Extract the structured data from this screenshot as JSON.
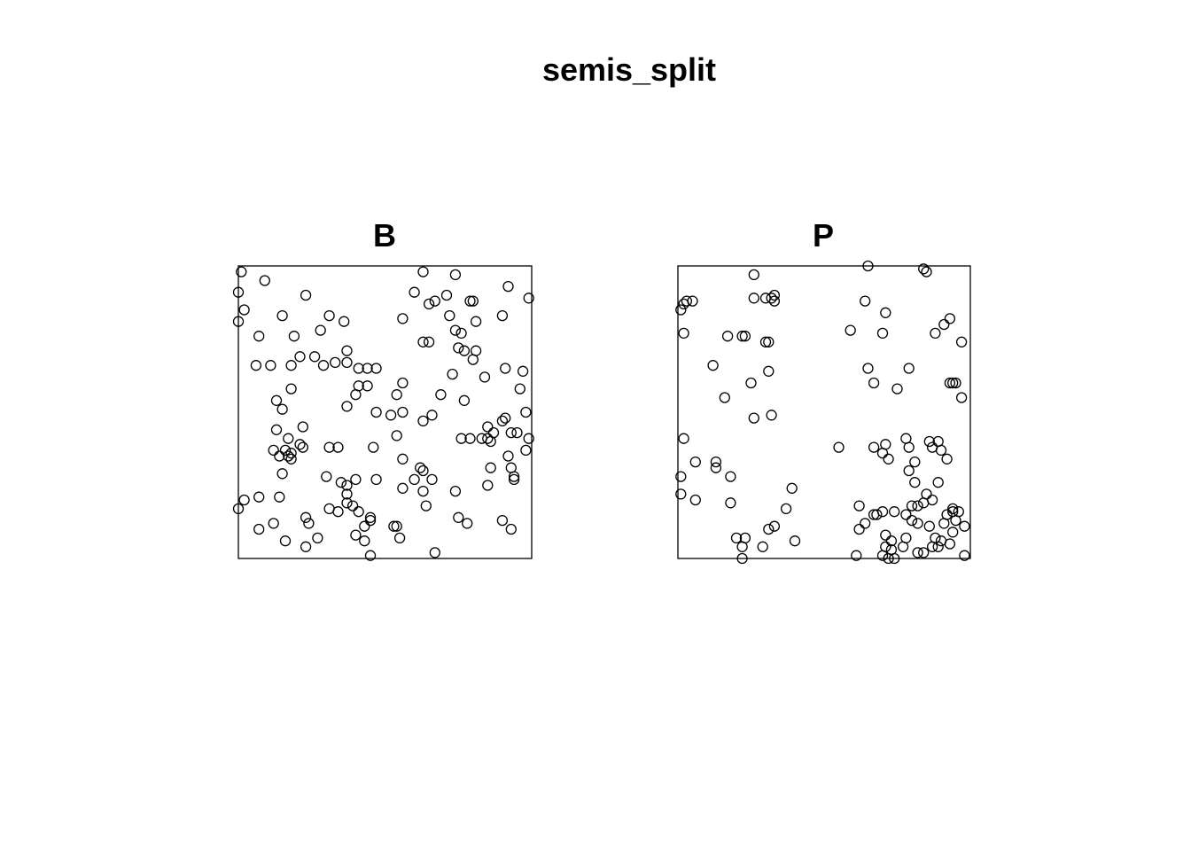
{
  "title": "semis_split",
  "chart_data": [
    {
      "type": "scatter",
      "title": "B",
      "xlim": [
        0,
        1
      ],
      "ylim": [
        0,
        1
      ],
      "frame": true,
      "axes": false,
      "marker": "open-circle",
      "color": "#000000",
      "points": [
        [
          0.01,
          0.98
        ],
        [
          0.09,
          0.95
        ],
        [
          0.0,
          0.91
        ],
        [
          0.02,
          0.85
        ],
        [
          0.0,
          0.81
        ],
        [
          0.23,
          0.9
        ],
        [
          0.15,
          0.83
        ],
        [
          0.31,
          0.83
        ],
        [
          0.36,
          0.81
        ],
        [
          0.28,
          0.78
        ],
        [
          0.07,
          0.76
        ],
        [
          0.19,
          0.76
        ],
        [
          0.21,
          0.69
        ],
        [
          0.26,
          0.69
        ],
        [
          0.37,
          0.71
        ],
        [
          0.06,
          0.66
        ],
        [
          0.11,
          0.66
        ],
        [
          0.18,
          0.66
        ],
        [
          0.29,
          0.66
        ],
        [
          0.33,
          0.67
        ],
        [
          0.37,
          0.67
        ],
        [
          0.41,
          0.65
        ],
        [
          0.44,
          0.65
        ],
        [
          0.47,
          0.65
        ],
        [
          0.63,
          0.98
        ],
        [
          0.74,
          0.97
        ],
        [
          0.92,
          0.93
        ],
        [
          0.99,
          0.89
        ],
        [
          0.6,
          0.91
        ],
        [
          0.71,
          0.9
        ],
        [
          0.65,
          0.87
        ],
        [
          0.67,
          0.88
        ],
        [
          0.79,
          0.88
        ],
        [
          0.8,
          0.88
        ],
        [
          0.72,
          0.83
        ],
        [
          0.56,
          0.82
        ],
        [
          0.9,
          0.83
        ],
        [
          0.74,
          0.78
        ],
        [
          0.76,
          0.77
        ],
        [
          0.63,
          0.74
        ],
        [
          0.65,
          0.74
        ],
        [
          0.81,
          0.81
        ],
        [
          0.75,
          0.72
        ],
        [
          0.77,
          0.71
        ],
        [
          0.81,
          0.71
        ],
        [
          0.8,
          0.68
        ],
        [
          0.91,
          0.65
        ],
        [
          0.97,
          0.64
        ],
        [
          0.73,
          0.63
        ],
        [
          0.84,
          0.62
        ],
        [
          0.96,
          0.58
        ],
        [
          0.18,
          0.58
        ],
        [
          0.13,
          0.54
        ],
        [
          0.41,
          0.59
        ],
        [
          0.4,
          0.56
        ],
        [
          0.44,
          0.59
        ],
        [
          0.56,
          0.6
        ],
        [
          0.54,
          0.56
        ],
        [
          0.69,
          0.56
        ],
        [
          0.15,
          0.51
        ],
        [
          0.37,
          0.52
        ],
        [
          0.56,
          0.5
        ],
        [
          0.66,
          0.49
        ],
        [
          0.77,
          0.54
        ],
        [
          0.85,
          0.45
        ],
        [
          0.91,
          0.48
        ],
        [
          0.98,
          0.5
        ],
        [
          0.13,
          0.44
        ],
        [
          0.22,
          0.45
        ],
        [
          0.47,
          0.5
        ],
        [
          0.52,
          0.49
        ],
        [
          0.63,
          0.47
        ],
        [
          0.17,
          0.41
        ],
        [
          0.21,
          0.39
        ],
        [
          0.16,
          0.37
        ],
        [
          0.83,
          0.41
        ],
        [
          0.87,
          0.43
        ],
        [
          0.9,
          0.47
        ],
        [
          0.95,
          0.43
        ],
        [
          0.99,
          0.41
        ],
        [
          0.12,
          0.37
        ],
        [
          0.14,
          0.35
        ],
        [
          0.18,
          0.36
        ],
        [
          0.22,
          0.38
        ],
        [
          0.31,
          0.38
        ],
        [
          0.34,
          0.38
        ],
        [
          0.46,
          0.38
        ],
        [
          0.54,
          0.42
        ],
        [
          0.76,
          0.41
        ],
        [
          0.79,
          0.41
        ],
        [
          0.85,
          0.41
        ],
        [
          0.86,
          0.4
        ],
        [
          0.93,
          0.43
        ],
        [
          0.98,
          0.37
        ],
        [
          0.92,
          0.35
        ],
        [
          0.17,
          0.35
        ],
        [
          0.18,
          0.34
        ],
        [
          0.56,
          0.34
        ],
        [
          0.62,
          0.31
        ],
        [
          0.15,
          0.29
        ],
        [
          0.3,
          0.28
        ],
        [
          0.35,
          0.26
        ],
        [
          0.4,
          0.27
        ],
        [
          0.47,
          0.27
        ],
        [
          0.6,
          0.27
        ],
        [
          0.63,
          0.3
        ],
        [
          0.66,
          0.27
        ],
        [
          0.86,
          0.31
        ],
        [
          0.94,
          0.27
        ],
        [
          0.93,
          0.31
        ],
        [
          0.37,
          0.22
        ],
        [
          0.37,
          0.25
        ],
        [
          0.56,
          0.24
        ],
        [
          0.63,
          0.23
        ],
        [
          0.74,
          0.23
        ],
        [
          0.85,
          0.25
        ],
        [
          0.94,
          0.28
        ],
        [
          0.02,
          0.2
        ],
        [
          0.07,
          0.21
        ],
        [
          0.14,
          0.21
        ],
        [
          0.0,
          0.17
        ],
        [
          0.31,
          0.17
        ],
        [
          0.34,
          0.16
        ],
        [
          0.37,
          0.19
        ],
        [
          0.39,
          0.18
        ],
        [
          0.41,
          0.16
        ],
        [
          0.64,
          0.18
        ],
        [
          0.23,
          0.14
        ],
        [
          0.24,
          0.12
        ],
        [
          0.12,
          0.12
        ],
        [
          0.45,
          0.14
        ],
        [
          0.45,
          0.13
        ],
        [
          0.43,
          0.11
        ],
        [
          0.53,
          0.11
        ],
        [
          0.54,
          0.11
        ],
        [
          0.07,
          0.1
        ],
        [
          0.16,
          0.06
        ],
        [
          0.27,
          0.07
        ],
        [
          0.4,
          0.08
        ],
        [
          0.43,
          0.06
        ],
        [
          0.55,
          0.07
        ],
        [
          0.23,
          0.04
        ],
        [
          0.45,
          0.01
        ],
        [
          0.67,
          0.02
        ],
        [
          0.75,
          0.14
        ],
        [
          0.78,
          0.12
        ],
        [
          0.9,
          0.13
        ],
        [
          0.93,
          0.1
        ]
      ]
    },
    {
      "type": "scatter",
      "title": "P",
      "xlim": [
        0,
        1
      ],
      "ylim": [
        0,
        1
      ],
      "frame": true,
      "axes": false,
      "marker": "open-circle",
      "color": "#000000",
      "points": [
        [
          0.26,
          0.97
        ],
        [
          0.65,
          1.0
        ],
        [
          0.84,
          0.99
        ],
        [
          0.85,
          0.98
        ],
        [
          0.26,
          0.89
        ],
        [
          0.3,
          0.89
        ],
        [
          0.32,
          0.89
        ],
        [
          0.33,
          0.9
        ],
        [
          0.33,
          0.88
        ],
        [
          0.64,
          0.88
        ],
        [
          0.71,
          0.84
        ],
        [
          0.93,
          0.82
        ],
        [
          0.91,
          0.8
        ],
        [
          0.88,
          0.77
        ],
        [
          0.97,
          0.74
        ],
        [
          0.02,
          0.87
        ],
        [
          0.03,
          0.88
        ],
        [
          0.01,
          0.85
        ],
        [
          0.05,
          0.88
        ],
        [
          0.23,
          0.76
        ],
        [
          0.22,
          0.76
        ],
        [
          0.17,
          0.76
        ],
        [
          0.3,
          0.74
        ],
        [
          0.31,
          0.74
        ],
        [
          0.02,
          0.77
        ],
        [
          0.59,
          0.78
        ],
        [
          0.7,
          0.77
        ],
        [
          0.12,
          0.66
        ],
        [
          0.31,
          0.64
        ],
        [
          0.65,
          0.65
        ],
        [
          0.79,
          0.65
        ],
        [
          0.25,
          0.6
        ],
        [
          0.67,
          0.6
        ],
        [
          0.75,
          0.58
        ],
        [
          0.93,
          0.6
        ],
        [
          0.94,
          0.6
        ],
        [
          0.95,
          0.6
        ],
        [
          0.97,
          0.55
        ],
        [
          0.16,
          0.55
        ],
        [
          0.26,
          0.48
        ],
        [
          0.32,
          0.49
        ],
        [
          0.02,
          0.41
        ],
        [
          0.55,
          0.38
        ],
        [
          0.67,
          0.38
        ],
        [
          0.7,
          0.36
        ],
        [
          0.71,
          0.39
        ],
        [
          0.79,
          0.38
        ],
        [
          0.87,
          0.38
        ],
        [
          0.9,
          0.37
        ],
        [
          0.86,
          0.4
        ],
        [
          0.89,
          0.4
        ],
        [
          0.78,
          0.41
        ],
        [
          0.06,
          0.33
        ],
        [
          0.13,
          0.33
        ],
        [
          0.13,
          0.31
        ],
        [
          0.18,
          0.28
        ],
        [
          0.01,
          0.28
        ],
        [
          0.72,
          0.34
        ],
        [
          0.79,
          0.3
        ],
        [
          0.81,
          0.33
        ],
        [
          0.92,
          0.34
        ],
        [
          0.01,
          0.22
        ],
        [
          0.06,
          0.2
        ],
        [
          0.18,
          0.19
        ],
        [
          0.39,
          0.24
        ],
        [
          0.37,
          0.17
        ],
        [
          0.62,
          0.18
        ],
        [
          0.68,
          0.15
        ],
        [
          0.7,
          0.16
        ],
        [
          0.74,
          0.16
        ],
        [
          0.78,
          0.15
        ],
        [
          0.8,
          0.18
        ],
        [
          0.82,
          0.18
        ],
        [
          0.84,
          0.19
        ],
        [
          0.87,
          0.2
        ],
        [
          0.89,
          0.26
        ],
        [
          0.94,
          0.17
        ],
        [
          0.96,
          0.16
        ],
        [
          0.92,
          0.15
        ],
        [
          0.81,
          0.26
        ],
        [
          0.85,
          0.22
        ],
        [
          0.8,
          0.13
        ],
        [
          0.82,
          0.12
        ],
        [
          0.86,
          0.11
        ],
        [
          0.91,
          0.12
        ],
        [
          0.95,
          0.13
        ],
        [
          0.94,
          0.09
        ],
        [
          0.98,
          0.11
        ],
        [
          0.88,
          0.07
        ],
        [
          0.9,
          0.06
        ],
        [
          0.93,
          0.05
        ],
        [
          0.2,
          0.07
        ],
        [
          0.23,
          0.07
        ],
        [
          0.22,
          0.04
        ],
        [
          0.31,
          0.1
        ],
        [
          0.33,
          0.11
        ],
        [
          0.29,
          0.04
        ],
        [
          0.4,
          0.06
        ],
        [
          0.62,
          0.1
        ],
        [
          0.64,
          0.12
        ],
        [
          0.67,
          0.15
        ],
        [
          0.71,
          0.08
        ],
        [
          0.73,
          0.06
        ],
        [
          0.71,
          0.04
        ],
        [
          0.73,
          0.03
        ],
        [
          0.72,
          0.0
        ],
        [
          0.74,
          0.0
        ],
        [
          0.77,
          0.04
        ],
        [
          0.78,
          0.07
        ],
        [
          0.82,
          0.02
        ],
        [
          0.84,
          0.02
        ],
        [
          0.87,
          0.04
        ],
        [
          0.98,
          0.01
        ],
        [
          0.61,
          0.01
        ],
        [
          0.22,
          0.0
        ],
        [
          0.7,
          0.01
        ],
        [
          0.94,
          0.16
        ],
        [
          0.89,
          0.04
        ]
      ]
    }
  ]
}
